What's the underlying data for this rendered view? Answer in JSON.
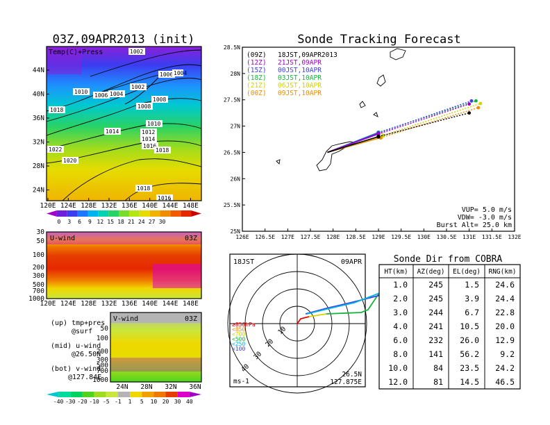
{
  "map": {
    "title": "03Z,09APR2013 (init)",
    "label": "Temp(C)+Press",
    "lon_ticks": [
      "120E",
      "124E",
      "128E",
      "132E",
      "136E",
      "140E",
      "144E",
      "148E"
    ],
    "lat_ticks": [
      "44N",
      "40N",
      "36N",
      "32N",
      "28N",
      "24N"
    ],
    "isobars": [
      {
        "label": "1002"
      },
      {
        "label": "1006"
      },
      {
        "label": "1004"
      },
      {
        "label": "1010"
      },
      {
        "label": "1006"
      },
      {
        "label": "1004"
      },
      {
        "label": "1002"
      },
      {
        "label": "1008"
      },
      {
        "label": "1008"
      },
      {
        "label": "1018"
      },
      {
        "label": "1010"
      },
      {
        "label": "1014"
      },
      {
        "label": "1012"
      },
      {
        "label": "1014"
      },
      {
        "label": "1016"
      },
      {
        "label": "1018"
      },
      {
        "label": "1022"
      },
      {
        "label": "1020"
      },
      {
        "label": "1018"
      },
      {
        "label": "1016"
      }
    ],
    "colorbar": {
      "labels": [
        "0",
        "3",
        "6",
        "9",
        "12",
        "15",
        "18",
        "21",
        "24",
        "27",
        "30"
      ],
      "colors": [
        "#a000c8",
        "#6e1edc",
        "#3c3cf0",
        "#1e78ff",
        "#00b4f0",
        "#00d2b4",
        "#28d264",
        "#78dc28",
        "#b4e614",
        "#e6dc00",
        "#f0b400",
        "#f08c00",
        "#f05a00",
        "#e62800",
        "#c80000"
      ]
    }
  },
  "u_panel": {
    "label": "U-wind",
    "time": "03Z",
    "y_ticks": [
      "30",
      "50",
      "100",
      "200",
      "300",
      "500",
      "700",
      "1000"
    ],
    "x_ticks": [
      "120E",
      "124E",
      "128E",
      "132E",
      "136E",
      "140E",
      "144E",
      "148E"
    ]
  },
  "v_panel": {
    "label": "V-wind",
    "time": "03Z",
    "y_ticks": [
      "50",
      "100",
      "200",
      "300",
      "500",
      "700",
      "1000"
    ],
    "x_ticks": [
      "24N",
      "28N",
      "32N",
      "36N"
    ]
  },
  "wind_colorbar": {
    "labels": [
      "-40",
      "-30",
      "-20",
      "-10",
      "-5",
      "-1",
      "1",
      "5",
      "10",
      "20",
      "30",
      "40"
    ],
    "colors": [
      "#00c8d2",
      "#00dca0",
      "#00d264",
      "#50d21e",
      "#a0dc1e",
      "#c8e63c",
      "#b4b4b4",
      "#f0d700",
      "#f0a000",
      "#f07800",
      "#e63c00",
      "#dc00c8",
      "#a000c8"
    ]
  },
  "notes": [
    {
      "line1": "(up) tmp+pres",
      "line2": "@surf"
    },
    {
      "line1": "(mid) u-wind",
      "line2": "@26.50N"
    },
    {
      "line1": "(bot) v-wind",
      "line2": "@127.84E"
    }
  ],
  "track": {
    "title": "Sonde Tracking Forecast",
    "xlim": [
      126,
      132
    ],
    "ylim": [
      25,
      28.5
    ],
    "x_ticks": [
      "126E",
      "126.5E",
      "127E",
      "127.5E",
      "128E",
      "128.5E",
      "129E",
      "129.5E",
      "130E",
      "130.5E",
      "131E",
      "131.5E",
      "132E"
    ],
    "y_ticks": [
      "28.5N",
      "28N",
      "27.5N",
      "27N",
      "26.5N",
      "26N",
      "25.5N",
      "25N"
    ],
    "legend": [
      {
        "utc": "(09Z)",
        "jst": "18JST,09APR2013",
        "color": "#000000"
      },
      {
        "utc": "(12Z)",
        "jst": "21JST,09APR",
        "color": "#a000c8"
      },
      {
        "utc": "(15Z)",
        "jst": "00JST,10APR",
        "color": "#3c3cf0"
      },
      {
        "utc": "(18Z)",
        "jst": "03JST,10APR",
        "color": "#14b43c"
      },
      {
        "utc": "(21Z)",
        "jst": "06JST,10APR",
        "color": "#d2d200"
      },
      {
        "utc": "(00Z)",
        "jst": "09JST,10APR",
        "color": "#f08c00"
      }
    ],
    "launch": {
      "lon": 127.875,
      "lat": 26.5
    },
    "tracks": [
      {
        "color": "#000000",
        "balloon_end": [
          129.0,
          26.8
        ],
        "end": [
          131.0,
          27.25
        ]
      },
      {
        "color": "#a000c8",
        "balloon_end": [
          129.0,
          26.85
        ],
        "end": [
          131.0,
          27.42
        ]
      },
      {
        "color": "#3c3cf0",
        "balloon_end": [
          129.0,
          26.87
        ],
        "end": [
          131.05,
          27.48
        ]
      },
      {
        "color": "#14b43c",
        "balloon_end": [
          129.0,
          26.88
        ],
        "end": [
          131.15,
          27.48
        ]
      },
      {
        "color": "#d2d200",
        "balloon_end": [
          129.1,
          26.82
        ],
        "end": [
          131.25,
          27.43
        ]
      },
      {
        "color": "#f08c00",
        "balloon_end": [
          129.05,
          26.78
        ],
        "end": [
          131.2,
          27.35
        ]
      }
    ],
    "info": {
      "vup": "VUP= 5.0 m/s",
      "vdw": "VDW= -3.0 m/s",
      "burst": "Burst Alt= 25.0 km"
    }
  },
  "polar": {
    "time": "18JST",
    "date": "09APR",
    "ring_labels": [
      "10",
      "20",
      "30",
      "40"
    ],
    "unit": "ms-1",
    "location": "26.5N",
    "location2": "127.875E",
    "legend": [
      {
        "text": "≥850hPa",
        "color": "#e60000"
      },
      {
        "text": "<850",
        "color": "#f08c00"
      },
      {
        "text": "<700",
        "color": "#d2d200"
      },
      {
        "text": "<500",
        "color": "#14b43c"
      },
      {
        "text": "<250",
        "color": "#00b4dc"
      },
      {
        "text": "<100",
        "color": "#3c3cf0"
      }
    ]
  },
  "table": {
    "title": "Sonde Dir from COBRA",
    "headers": [
      "HT(km)",
      "AZ(deg)",
      "EL(deg)",
      "RNG(km)"
    ],
    "rows": [
      [
        "1.0",
        "245",
        "1.5",
        "24.6"
      ],
      [
        "2.0",
        "245",
        "3.9",
        "24.4"
      ],
      [
        "3.0",
        "244",
        "6.7",
        "22.8"
      ],
      [
        "4.0",
        "241",
        "10.5",
        "20.0"
      ],
      [
        "6.0",
        "232",
        "26.0",
        "12.9"
      ],
      [
        "8.0",
        "141",
        "56.2",
        "9.2"
      ],
      [
        "10.0",
        "84",
        "23.5",
        "24.2"
      ],
      [
        "12.0",
        "81",
        "14.5",
        "46.5"
      ]
    ]
  }
}
